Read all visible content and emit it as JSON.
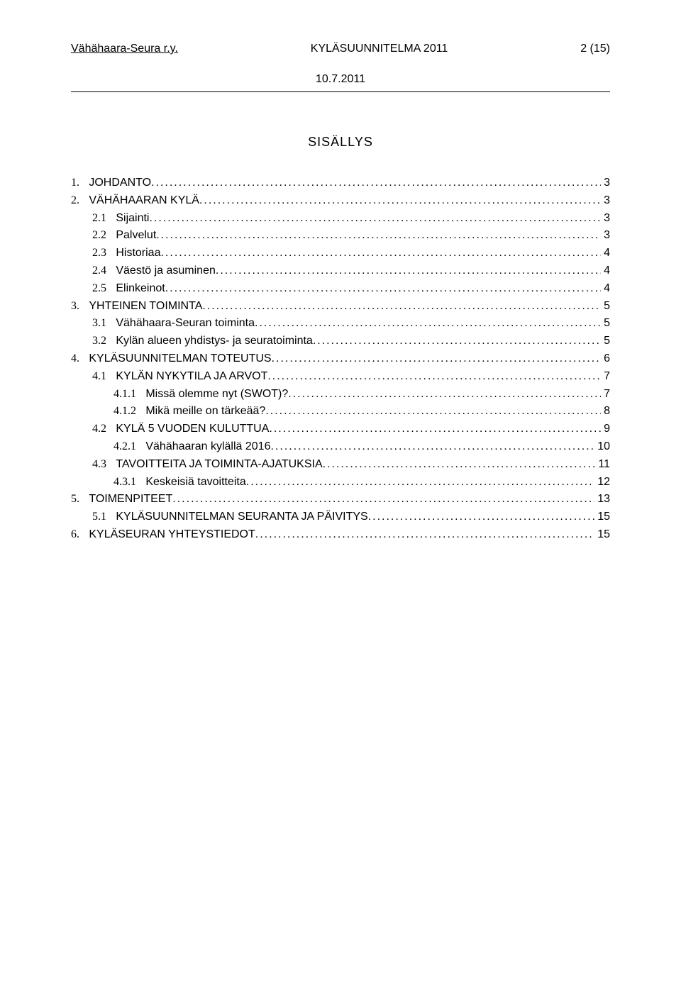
{
  "header": {
    "org": "Vähähaara-Seura r.y.",
    "doc": "KYLÄSUUNNITELMA 2011",
    "page": "2 (15)",
    "date": "10.7.2011"
  },
  "toc_title": "SISÄLLYS",
  "toc": [
    {
      "level": 1,
      "num": "1.",
      "title": "JOHDANTO",
      "page": "3"
    },
    {
      "level": 1,
      "num": "2.",
      "title": "VÄHÄHAARAN KYLÄ",
      "page": "3"
    },
    {
      "level": 2,
      "num": "2.1",
      "title": "Sijainti",
      "page": "3"
    },
    {
      "level": 2,
      "num": "2.2",
      "title": "Palvelut",
      "page": "3"
    },
    {
      "level": 2,
      "num": "2.3",
      "title": "Historiaa",
      "page": "4"
    },
    {
      "level": 2,
      "num": "2.4",
      "title": "Väestö ja asuminen",
      "page": "4"
    },
    {
      "level": 2,
      "num": "2.5",
      "title": "Elinkeinot",
      "page": "4"
    },
    {
      "level": 1,
      "num": "3.",
      "title": "YHTEINEN TOIMINTA",
      "page": "5"
    },
    {
      "level": 2,
      "num": "3.1",
      "title": "Vähähaara-Seuran toiminta",
      "page": "5"
    },
    {
      "level": 2,
      "num": "3.2",
      "title": "Kylän alueen yhdistys- ja seuratoiminta",
      "page": "5"
    },
    {
      "level": 1,
      "num": "4.",
      "title": "KYLÄSUUNNITELMAN TOTEUTUS",
      "page": "6"
    },
    {
      "level": 2,
      "num": "4.1",
      "title": "KYLÄN NYKYTILA JA ARVOT",
      "page": "7"
    },
    {
      "level": 3,
      "num": "4.1.1",
      "title": "Missä olemme nyt (SWOT)?",
      "page": "7"
    },
    {
      "level": 3,
      "num": "4.1.2",
      "title": "Mikä meille on tärkeää?",
      "page": "8"
    },
    {
      "level": 2,
      "num": "4.2",
      "title": "KYLÄ 5 VUODEN KULUTTUA",
      "page": "9"
    },
    {
      "level": 3,
      "num": "4.2.1",
      "title": "Vähähaaran kylällä  2016",
      "page": "10"
    },
    {
      "level": 2,
      "num": "4.3",
      "title": "TAVOITTEITA JA TOIMINTA-AJATUKSIA",
      "page": "11"
    },
    {
      "level": 3,
      "num": "4.3.1",
      "title": "Keskeisiä tavoitteita",
      "page": "12"
    },
    {
      "level": 1,
      "num": "5.",
      "title": "TOIMENPITEET",
      "page": "13"
    },
    {
      "level": 2,
      "num": "5.1",
      "title": "KYLÄSUUNNITELMAN SEURANTA JA PÄIVITYS",
      "page": "15"
    },
    {
      "level": 1,
      "num": "6.",
      "title": "KYLÄSEURAN YHTEYSTIEDOT",
      "page": "15"
    }
  ]
}
